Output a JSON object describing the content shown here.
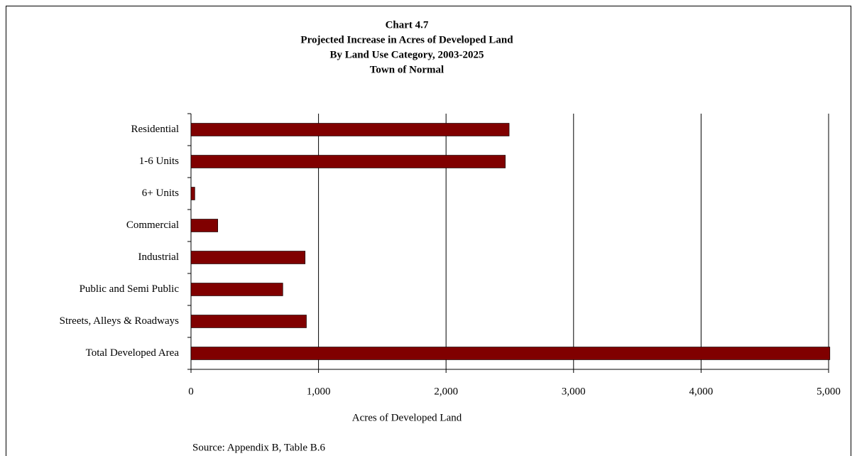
{
  "chart_data": {
    "type": "barh",
    "title": [
      "Chart  4.7",
      "Projected Increase in Acres of Developed Land",
      "By Land Use Category, 2003-2025",
      "Town of Normal"
    ],
    "categories": [
      "Residential",
      "1-6 Units",
      "6+ Units",
      "Commercial",
      "Industrial",
      "Public and Semi Public",
      "Streets, Alleys & Roadways",
      "Total Developed Area"
    ],
    "values": [
      2495,
      2465,
      30,
      210,
      895,
      720,
      905,
      5010
    ],
    "color": "#800000",
    "xlim": [
      0,
      5000
    ],
    "xticks": [
      0,
      {
        "value": 1000,
        "label": "1,000"
      },
      {
        "value": 2000,
        "label": "2,000"
      },
      {
        "value": 3000,
        "label": "3,000"
      },
      {
        "value": 4000,
        "label": "4,000"
      },
      {
        "value": 5000,
        "label": "5,000"
      }
    ],
    "xlabel": "Acres of Developed Land",
    "source": "Source: Appendix B, Table B.6",
    "grid": true
  }
}
